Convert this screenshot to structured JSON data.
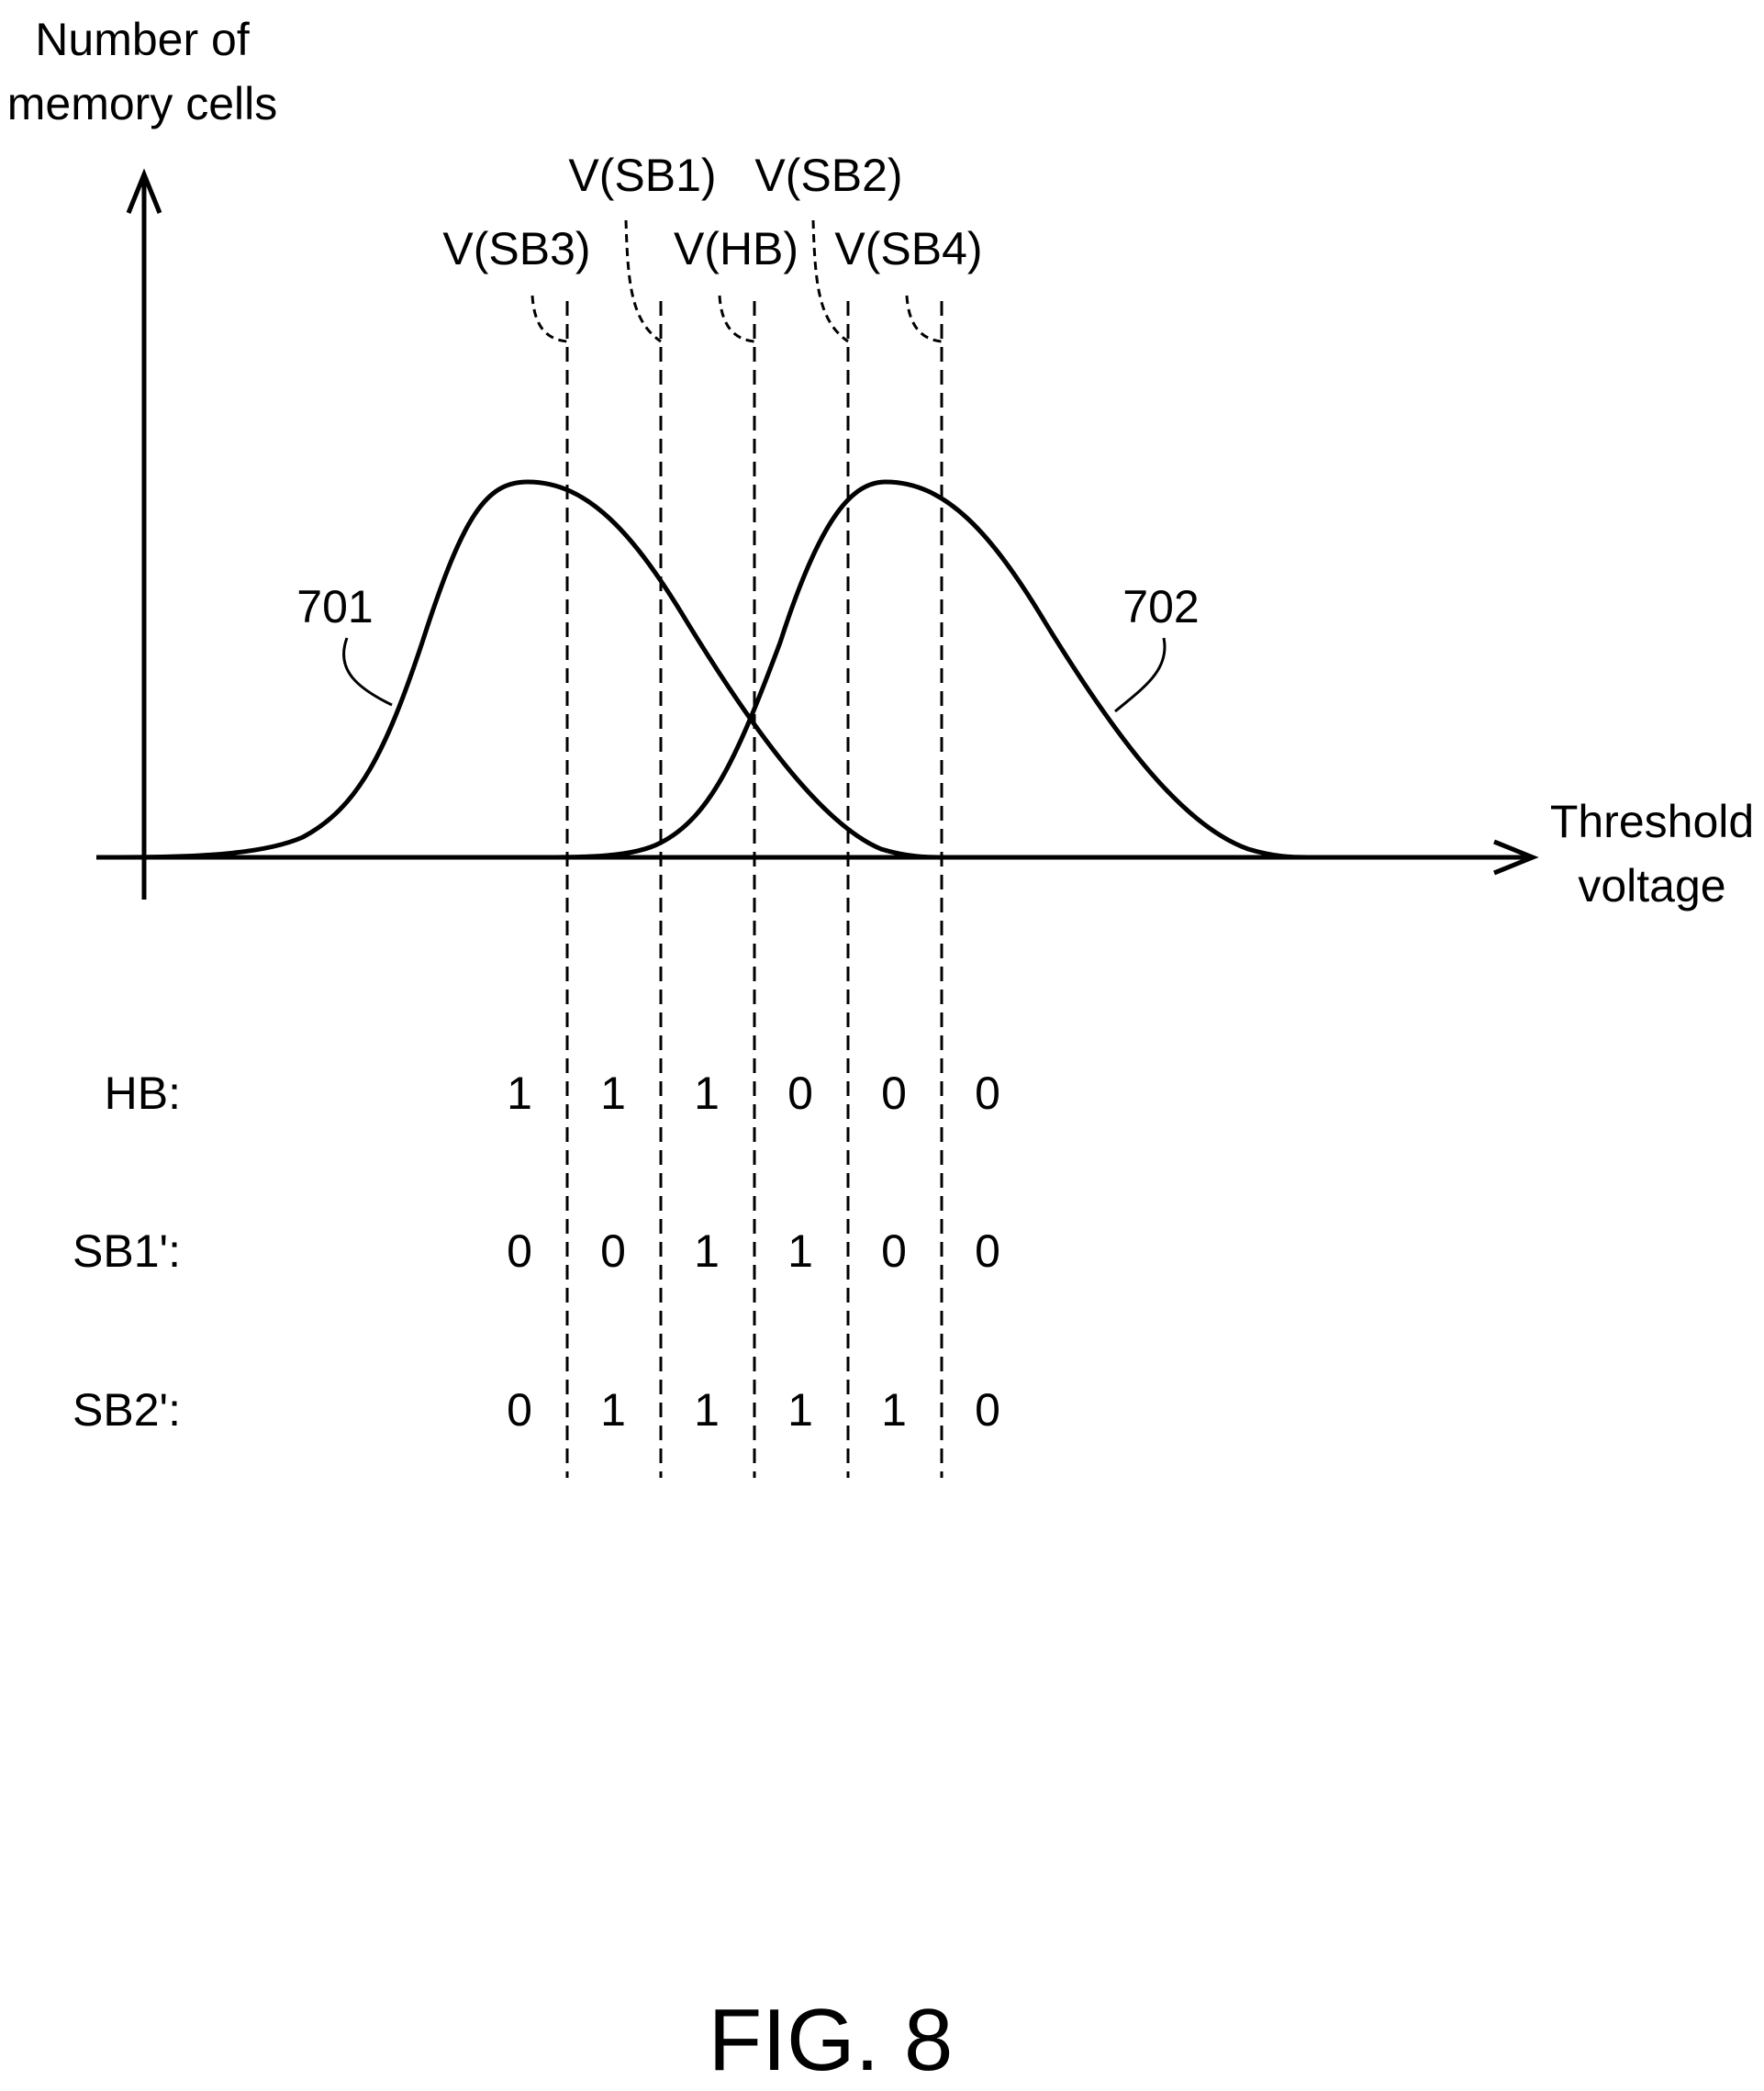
{
  "axes": {
    "y_label_lines": [
      "Number of",
      "memory cells"
    ],
    "x_label_lines": [
      "Threshold",
      "voltage"
    ]
  },
  "voltages": [
    {
      "label": "V(SB1)",
      "row": "top"
    },
    {
      "label": "V(SB2)",
      "row": "top"
    },
    {
      "label": "V(SB3)",
      "row": "bottom"
    },
    {
      "label": "V(HB)",
      "row": "bottom"
    },
    {
      "label": "V(SB4)",
      "row": "bottom"
    }
  ],
  "curves": [
    {
      "label": "701"
    },
    {
      "label": "702"
    }
  ],
  "bit_table": {
    "rows": [
      {
        "label": "HB:",
        "values": [
          "1",
          "1",
          "1",
          "0",
          "0",
          "0"
        ]
      },
      {
        "label": "SB1':",
        "values": [
          "0",
          "0",
          "1",
          "1",
          "0",
          "0"
        ]
      },
      {
        "label": "SB2':",
        "values": [
          "0",
          "1",
          "1",
          "1",
          "1",
          "0"
        ]
      }
    ]
  },
  "caption": "FIG. 8"
}
